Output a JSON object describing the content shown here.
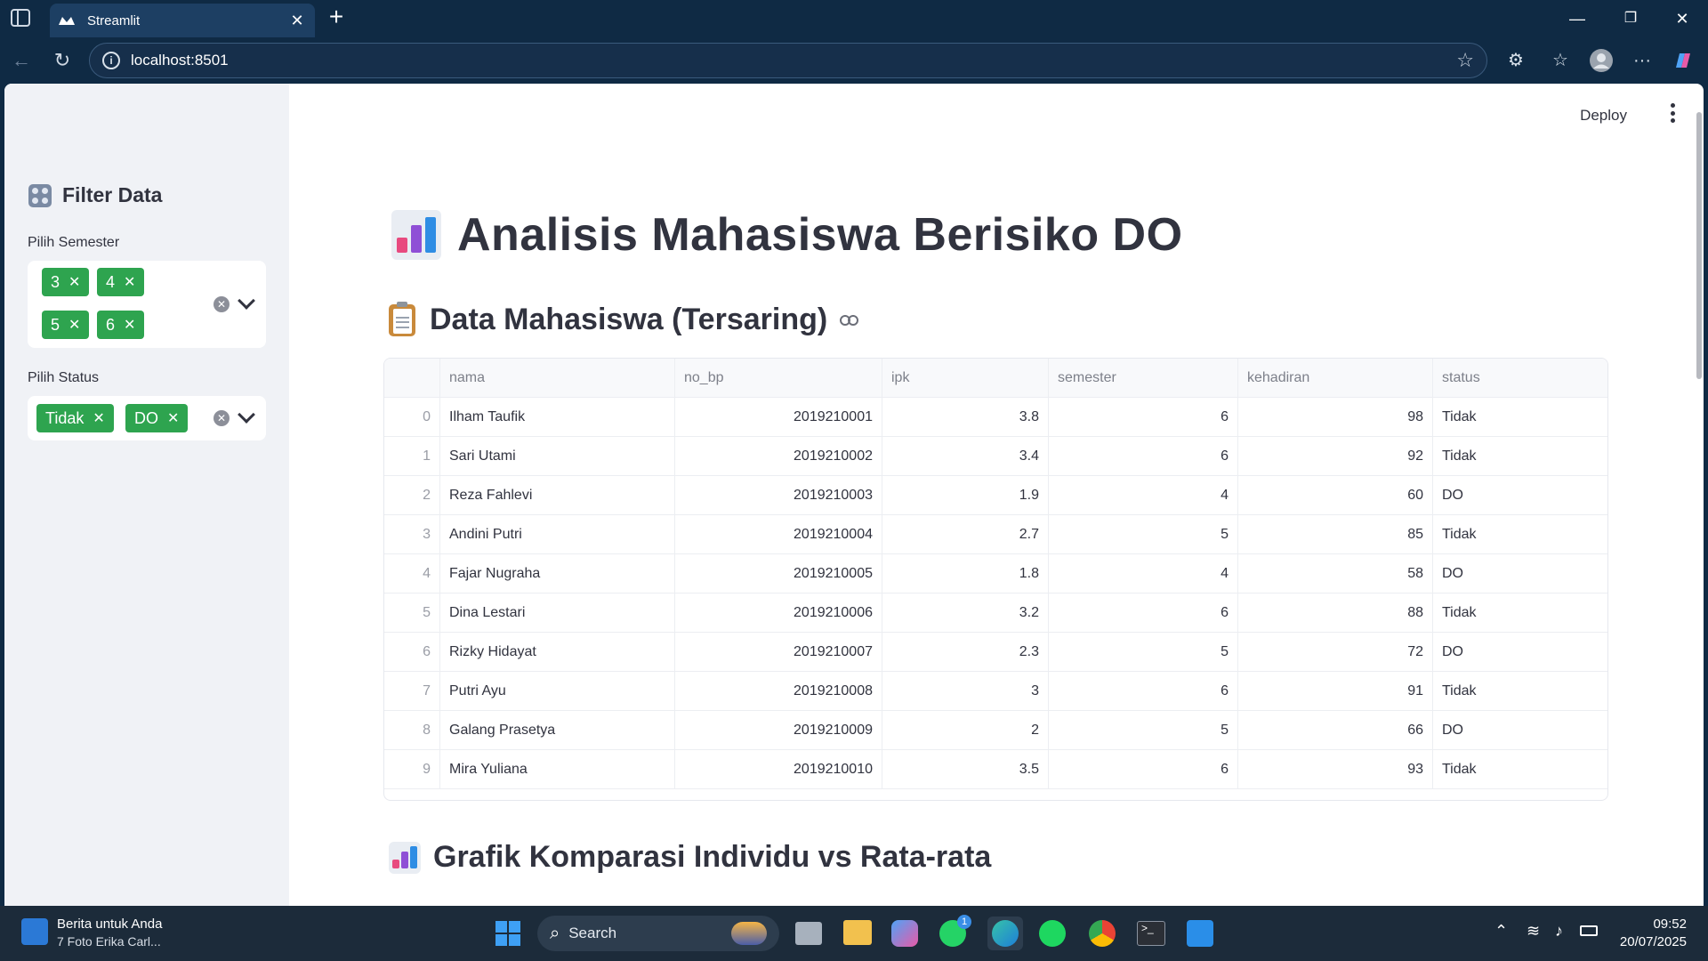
{
  "browser": {
    "tab_title": "Streamlit",
    "url": "localhost:8501"
  },
  "sidebar": {
    "title": "Filter Data",
    "semester_label": "Pilih Semester",
    "semester_chips": [
      "3",
      "4",
      "5",
      "6"
    ],
    "status_label": "Pilih Status",
    "status_chips": [
      "Tidak",
      "DO"
    ]
  },
  "toolbar": {
    "deploy_label": "Deploy"
  },
  "main": {
    "title": "Analisis Mahasiswa Berisiko DO",
    "section_table": "Data Mahasiswa (Tersaring)",
    "section_chart": "Grafik Komparasi Individu vs Rata-rata"
  },
  "table": {
    "columns": [
      "nama",
      "no_bp",
      "ipk",
      "semester",
      "kehadiran",
      "status"
    ],
    "rows": [
      [
        "0",
        "Ilham Taufik",
        "2019210001",
        "3.8",
        "6",
        "98",
        "Tidak"
      ],
      [
        "1",
        "Sari Utami",
        "2019210002",
        "3.4",
        "6",
        "92",
        "Tidak"
      ],
      [
        "2",
        "Reza Fahlevi",
        "2019210003",
        "1.9",
        "4",
        "60",
        "DO"
      ],
      [
        "3",
        "Andini Putri",
        "2019210004",
        "2.7",
        "5",
        "85",
        "Tidak"
      ],
      [
        "4",
        "Fajar Nugraha",
        "2019210005",
        "1.8",
        "4",
        "58",
        "DO"
      ],
      [
        "5",
        "Dina Lestari",
        "2019210006",
        "3.2",
        "6",
        "88",
        "Tidak"
      ],
      [
        "6",
        "Rizky Hidayat",
        "2019210007",
        "2.3",
        "5",
        "72",
        "DO"
      ],
      [
        "7",
        "Putri Ayu",
        "2019210008",
        "3",
        "6",
        "91",
        "Tidak"
      ],
      [
        "8",
        "Galang Prasetya",
        "2019210009",
        "2",
        "5",
        "66",
        "DO"
      ],
      [
        "9",
        "Mira Yuliana",
        "2019210010",
        "3.5",
        "6",
        "93",
        "Tidak"
      ]
    ]
  },
  "taskbar": {
    "news_title": "Berita untuk Anda",
    "news_sub": "7 Foto Erika Carl...",
    "search_label": "Search",
    "whatsapp_badge": "1",
    "time": "09:52",
    "date": "20/07/2025"
  },
  "colors": {
    "chip": "#2ea44f",
    "chrome": "#0f2a44",
    "sidebar": "#f0f2f6"
  }
}
